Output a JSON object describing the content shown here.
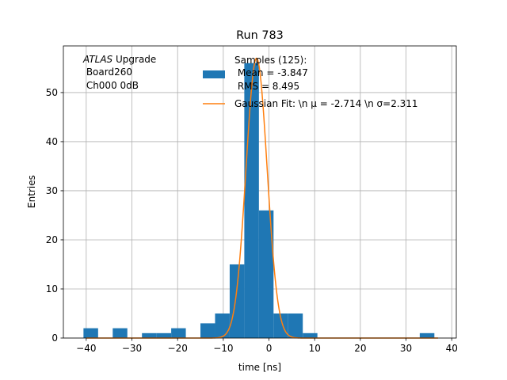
{
  "chart_data": {
    "type": "bar",
    "title": "Run 783",
    "xlabel": "time [ns]",
    "ylabel": "Entries",
    "xlim": [
      -45,
      41
    ],
    "ylim": [
      0,
      59.5
    ],
    "grid": true,
    "x_ticks": [
      -40,
      -30,
      -20,
      -10,
      0,
      10,
      20,
      30,
      40
    ],
    "y_ticks": [
      0,
      10,
      20,
      30,
      40,
      50
    ],
    "x_tick_labels": [
      "−40",
      "−30",
      "−20",
      "−10",
      "0",
      "10",
      "20",
      "30",
      "40"
    ],
    "y_tick_labels": [
      "0",
      "10",
      "20",
      "30",
      "40",
      "50"
    ],
    "annotation": {
      "line1_italic": "ATLAS",
      "line1_rest": " Upgrade",
      "line2": " Board260",
      "line3": " Ch000 0dB"
    },
    "legend": {
      "placement": "top-right",
      "histogram_label_lines": [
        "Samples (125):",
        " Mean = -3.847",
        " RMS = 8.495"
      ],
      "fit_label": "Gaussian Fit: \\n μ = -2.714 \\n σ=2.311"
    },
    "histogram": {
      "name": "Samples (125):",
      "color": "#1f77b4",
      "bins": [
        {
          "x0": -40.6,
          "x1": -37.4,
          "count": 2
        },
        {
          "x0": -34.2,
          "x1": -31.0,
          "count": 2
        },
        {
          "x0": -27.8,
          "x1": -24.6,
          "count": 1
        },
        {
          "x0": -24.6,
          "x1": -21.4,
          "count": 1
        },
        {
          "x0": -21.4,
          "x1": -18.2,
          "count": 2
        },
        {
          "x0": -15.0,
          "x1": -11.8,
          "count": 3
        },
        {
          "x0": -11.8,
          "x1": -8.6,
          "count": 5
        },
        {
          "x0": -8.6,
          "x1": -5.4,
          "count": 15
        },
        {
          "x0": -5.4,
          "x1": -2.2,
          "count": 56
        },
        {
          "x0": -2.2,
          "x1": 1.0,
          "count": 26
        },
        {
          "x0": 1.0,
          "x1": 4.2,
          "count": 5
        },
        {
          "x0": 4.2,
          "x1": 7.4,
          "count": 5
        },
        {
          "x0": 7.4,
          "x1": 10.6,
          "count": 1
        },
        {
          "x0": 33.0,
          "x1": 36.2,
          "count": 1
        }
      ]
    },
    "fit": {
      "name": "Gaussian Fit",
      "color": "#ff7f0e",
      "mu": -2.714,
      "sigma": 2.311,
      "amplitude": 57,
      "x_range": [
        -40,
        37
      ]
    }
  }
}
